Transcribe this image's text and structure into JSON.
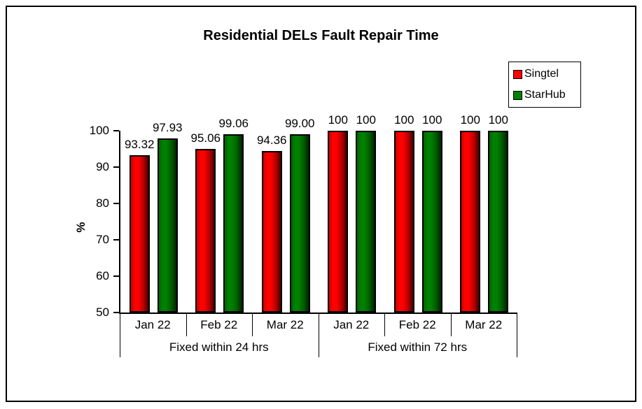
{
  "chart_data": {
    "type": "bar",
    "title": "Residential DELs Fault Repair Time",
    "ylabel": "%",
    "ylim": [
      50,
      100
    ],
    "yticks": [
      100,
      90,
      80,
      70,
      60,
      50
    ],
    "grid": false,
    "legend_position": "top-right",
    "groups": [
      {
        "label": "Fixed within 24 hrs",
        "categories": [
          "Jan 22",
          "Feb 22",
          "Mar 22"
        ]
      },
      {
        "label": "Fixed within 72 hrs",
        "categories": [
          "Jan 22",
          "Feb 22",
          "Mar 22"
        ]
      }
    ],
    "series": [
      {
        "name": "Singtel",
        "color": "#FF0000",
        "values": [
          93.32,
          95.06,
          94.36,
          100,
          100,
          100
        ],
        "labels": [
          "93.32",
          "95.06",
          "94.36",
          "100",
          "100",
          "100"
        ]
      },
      {
        "name": "StarHub",
        "color": "#008000",
        "values": [
          97.93,
          99.06,
          99.0,
          100,
          100,
          100
        ],
        "labels": [
          "97.93",
          "99.06",
          "99.00",
          "100",
          "100",
          "100"
        ]
      }
    ]
  }
}
